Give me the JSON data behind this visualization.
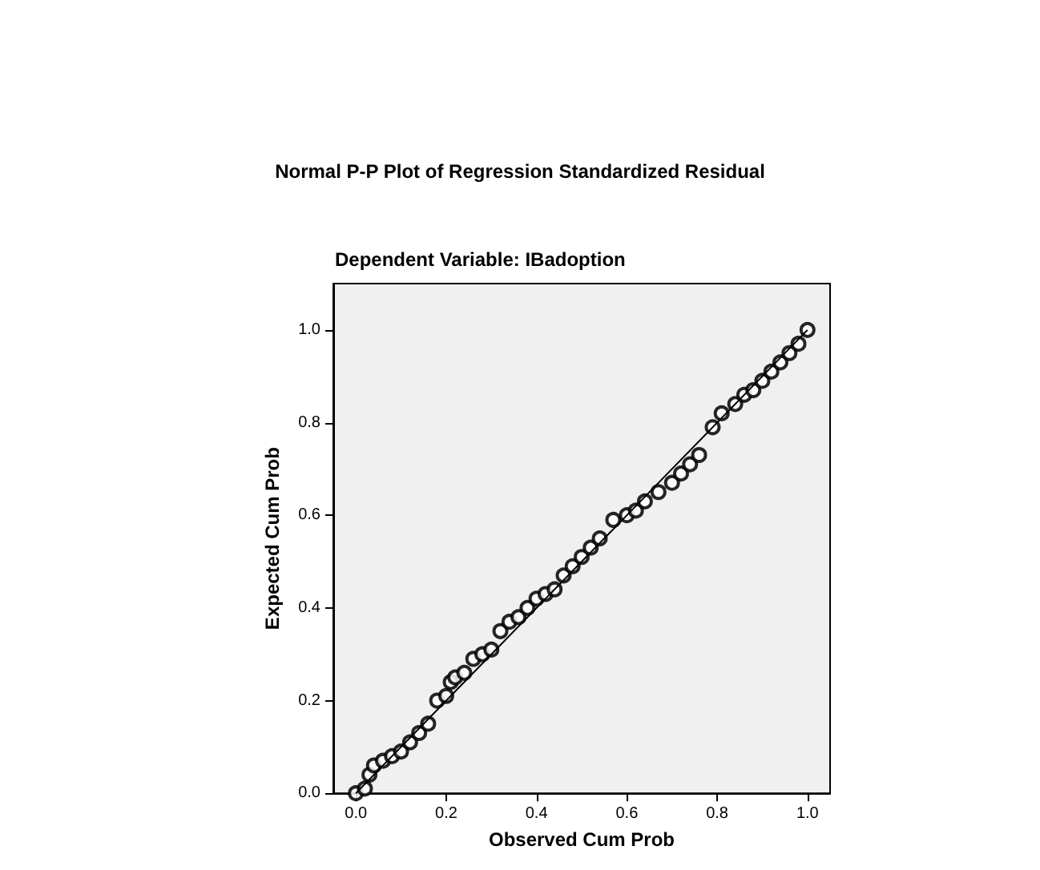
{
  "chart_data": {
    "type": "scatter",
    "title": "Normal P-P Plot of Regression Standardized Residual",
    "subtitle": "Dependent Variable: IBadoption",
    "xlabel": "Observed Cum Prob",
    "ylabel": "Expected Cum Prob",
    "xlim": [
      -0.05,
      1.05
    ],
    "ylim": [
      0,
      1.1
    ],
    "xticks": [
      {
        "value": 0,
        "label": "0.0"
      },
      0.2,
      0.4,
      0.6,
      0.8,
      {
        "value": 1,
        "label": "1.0"
      }
    ],
    "yticks": [
      {
        "value": 0,
        "label": "0.0"
      },
      0.2,
      0.4,
      0.6,
      0.8,
      {
        "value": 1,
        "label": "1.0"
      }
    ],
    "grid": false,
    "series": [
      {
        "marker": "circle",
        "color": "#000000",
        "x": [
          0.0,
          0.02,
          0.03,
          0.04,
          0.06,
          0.08,
          0.1,
          0.12,
          0.14,
          0.16,
          0.18,
          0.2,
          0.21,
          0.22,
          0.24,
          0.26,
          0.28,
          0.3,
          0.32,
          0.34,
          0.36,
          0.38,
          0.4,
          0.42,
          0.44,
          0.46,
          0.48,
          0.5,
          0.52,
          0.54,
          0.57,
          0.6,
          0.62,
          0.64,
          0.67,
          0.7,
          0.72,
          0.74,
          0.76,
          0.79,
          0.81,
          0.84,
          0.86,
          0.88,
          0.9,
          0.92,
          0.94,
          0.96,
          0.98,
          1.0
        ],
        "values": [
          0.0,
          0.01,
          0.04,
          0.06,
          0.07,
          0.08,
          0.09,
          0.11,
          0.13,
          0.15,
          0.2,
          0.21,
          0.24,
          0.25,
          0.26,
          0.29,
          0.3,
          0.31,
          0.35,
          0.37,
          0.38,
          0.4,
          0.42,
          0.43,
          0.44,
          0.47,
          0.49,
          0.51,
          0.53,
          0.55,
          0.59,
          0.6,
          0.61,
          0.63,
          0.65,
          0.67,
          0.69,
          0.71,
          0.73,
          0.79,
          0.82,
          0.84,
          0.86,
          0.87,
          0.89,
          0.91,
          0.93,
          0.95,
          0.97,
          1.0
        ]
      },
      {
        "type": "line",
        "color": "#000000",
        "x": [
          0.0,
          1.0
        ],
        "values": [
          0.0,
          1.0
        ],
        "marker": "none",
        "line_style": "solid"
      }
    ]
  }
}
